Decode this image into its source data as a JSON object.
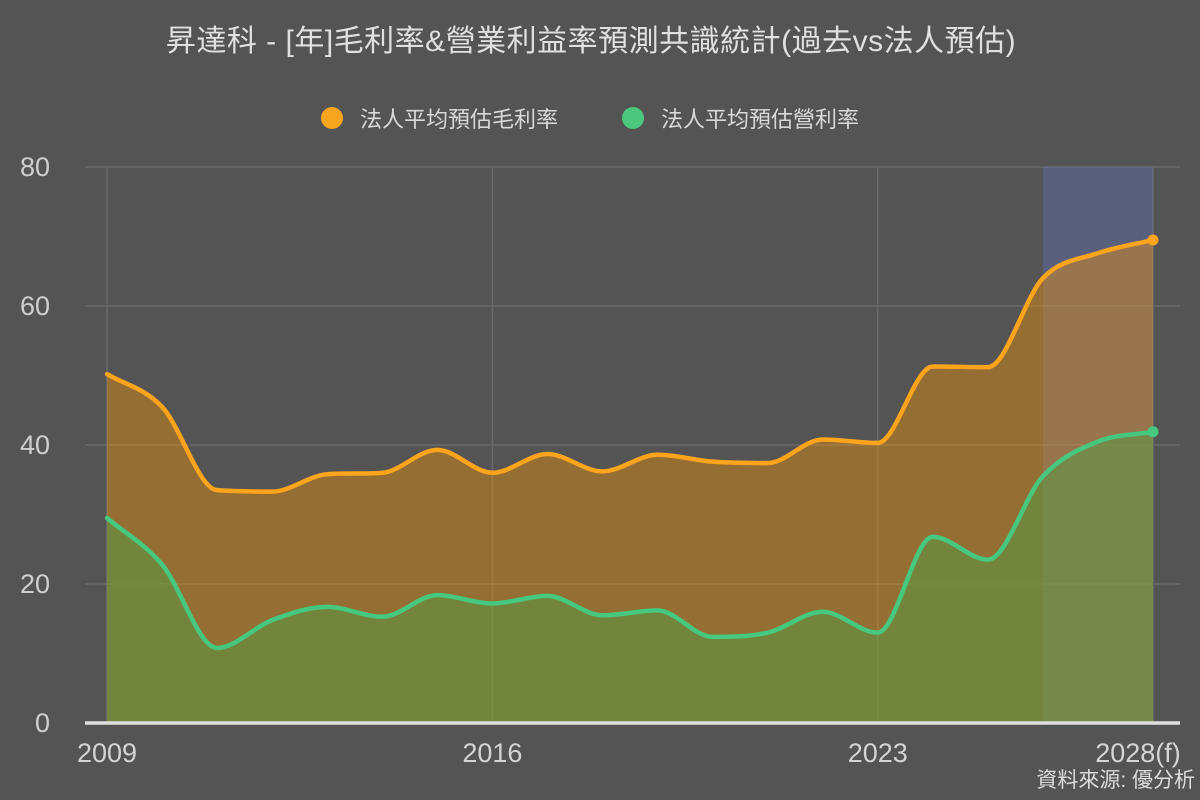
{
  "title": "昇達科 - [年]毛利率&營業利益率預測共識統計(過去vs法人預估)",
  "legend": [
    {
      "label": "法人平均預估毛利率",
      "color": "#f8a51e",
      "icon": "circle"
    },
    {
      "label": "法人平均預估營利率",
      "color": "#4bc87e",
      "icon": "circle"
    }
  ],
  "source": "資料來源: 優分析",
  "colors": {
    "background": "#545454",
    "grid": "#6a6a6a",
    "axis": "#dedede",
    "forecast_band": "rgba(100,120,200,0.35)",
    "gross_line": "#fba41c",
    "gross_fill": "rgba(255,152,0,0.38)",
    "operating_line": "#46c87e",
    "operating_fill": "rgba(70,165,75,0.42)"
  },
  "chart_data": {
    "type": "area",
    "title": "昇達科 - [年]毛利率&營業利益率預測共識統計(過去vs法人預估)",
    "x": [
      2009,
      2010,
      2011,
      2012,
      2013,
      2014,
      2015,
      2016,
      2017,
      2018,
      2019,
      2020,
      2021,
      2022,
      2023,
      2024,
      2025,
      2026,
      2027,
      2028
    ],
    "series": [
      {
        "name": "法人平均預估毛利率",
        "values": [
          50.2,
          45.5,
          33.5,
          33.3,
          35.8,
          36.0,
          39.3,
          36.0,
          38.7,
          36.2,
          38.6,
          37.6,
          37.4,
          40.8,
          40.3,
          51.3,
          51.2,
          64.0,
          67.6,
          69.5
        ]
      },
      {
        "name": "法人平均預估營利率",
        "values": [
          29.5,
          22.8,
          10.8,
          14.8,
          16.7,
          15.3,
          18.4,
          17.2,
          18.3,
          15.5,
          16.2,
          12.4,
          13.0,
          16.0,
          13.0,
          26.8,
          23.5,
          35.5,
          40.5,
          41.9
        ]
      }
    ],
    "x_ticks": [
      {
        "value": 2009,
        "label": "2009"
      },
      {
        "value": 2016,
        "label": "2016"
      },
      {
        "value": 2023,
        "label": "2023"
      },
      {
        "value": 2028,
        "label": "2028(f)"
      }
    ],
    "y_ticks": [
      0,
      20,
      40,
      60,
      80
    ],
    "ylim": [
      0,
      80
    ],
    "xlim": [
      2009,
      2028
    ],
    "forecast_band": {
      "from": 2026,
      "to": 2028
    },
    "grid": true,
    "legend_position": "top",
    "end_point_markers": true
  }
}
